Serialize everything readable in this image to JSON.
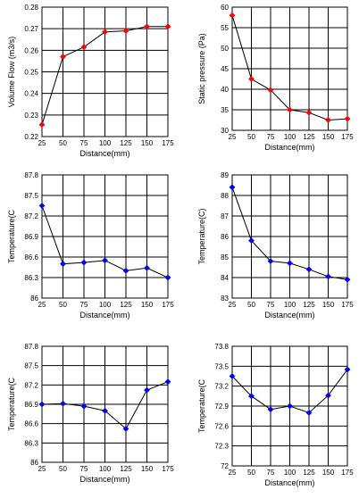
{
  "chart_data": [
    {
      "type": "line",
      "xlabel": "Distance(mm)",
      "ylabel": "Volume Flow (m3/s)",
      "x": [
        25,
        50,
        75,
        100,
        125,
        150,
        175
      ],
      "values": [
        0.2255,
        0.257,
        0.2615,
        0.2685,
        0.269,
        0.271,
        0.271
      ],
      "xlim": [
        25,
        175
      ],
      "ylim": [
        0.22,
        0.28
      ],
      "xticks": [
        "25",
        "50",
        "75",
        "100",
        "125",
        "150",
        "175"
      ],
      "yticks": [
        "0.22",
        "0.23",
        "0.24",
        "0.25",
        "0.26",
        "0.27",
        "0.28"
      ],
      "marker_color": "#ff0000",
      "grid": true
    },
    {
      "type": "line",
      "xlabel": "Distance(mm)",
      "ylabel": "Static pressure (Pa)",
      "x": [
        25,
        50,
        75,
        100,
        125,
        150,
        175
      ],
      "values": [
        58,
        42.5,
        39.8,
        35,
        34.3,
        32.5,
        32.8
      ],
      "xlim": [
        25,
        175
      ],
      "ylim": [
        30,
        60
      ],
      "xticks": [
        "25",
        "50",
        "75",
        "100",
        "125",
        "150",
        "175"
      ],
      "yticks": [
        "30",
        "35",
        "40",
        "45",
        "50",
        "55",
        "60"
      ],
      "marker_color": "#ff0000",
      "grid": true
    },
    {
      "type": "line",
      "xlabel": "Distance(mm)",
      "ylabel": "Temperature(C",
      "x": [
        25,
        50,
        75,
        100,
        125,
        150,
        175
      ],
      "values": [
        87.35,
        86.5,
        86.52,
        86.55,
        86.4,
        86.44,
        86.3
      ],
      "xlim": [
        25,
        175
      ],
      "ylim": [
        86,
        87.8
      ],
      "xticks": [
        "25",
        "50",
        "75",
        "100",
        "125",
        "150",
        "175"
      ],
      "yticks": [
        "86",
        "86.3",
        "86.6",
        "86.9",
        "87.2",
        "87.5",
        "87.8"
      ],
      "marker_color": "#0000ff",
      "grid": true
    },
    {
      "type": "line",
      "xlabel": "Distance(mm)",
      "ylabel": "Temperature(C)",
      "x": [
        25,
        50,
        75,
        100,
        125,
        150,
        175
      ],
      "values": [
        88.4,
        85.8,
        84.8,
        84.7,
        84.4,
        84.05,
        83.9
      ],
      "xlim": [
        25,
        175
      ],
      "ylim": [
        83,
        89
      ],
      "xticks": [
        "25",
        "50",
        "75",
        "100",
        "125",
        "150",
        "175"
      ],
      "yticks": [
        "83",
        "84",
        "85",
        "86",
        "87",
        "88",
        "89"
      ],
      "marker_color": "#0000ff",
      "grid": true
    },
    {
      "type": "line",
      "xlabel": "Distance(mm)",
      "ylabel": "Temperature(C",
      "x": [
        25,
        50,
        75,
        100,
        125,
        150,
        175
      ],
      "values": [
        86.9,
        86.91,
        86.87,
        86.8,
        86.52,
        87.12,
        87.25
      ],
      "xlim": [
        25,
        175
      ],
      "ylim": [
        86,
        87.8
      ],
      "xticks": [
        "25",
        "50",
        "75",
        "100",
        "125",
        "150",
        "175"
      ],
      "yticks": [
        "86",
        "86.3",
        "86.6",
        "86.9",
        "87.2",
        "87.5",
        "87.8"
      ],
      "marker_color": "#0000ff",
      "grid": true
    },
    {
      "type": "line",
      "xlabel": "Distance(mm)",
      "ylabel": "Temperature(C",
      "x": [
        25,
        50,
        75,
        100,
        125,
        150,
        175
      ],
      "values": [
        73.35,
        73.05,
        72.85,
        72.9,
        72.8,
        73.06,
        73.45
      ],
      "xlim": [
        25,
        175
      ],
      "ylim": [
        72,
        73.8
      ],
      "xticks": [
        "25",
        "50",
        "75",
        "100",
        "125",
        "150",
        "175"
      ],
      "yticks": [
        "72",
        "72.3",
        "72.6",
        "72.9",
        "73.2",
        "73.5",
        "73.8"
      ],
      "marker_color": "#0000ff",
      "grid": true
    }
  ]
}
